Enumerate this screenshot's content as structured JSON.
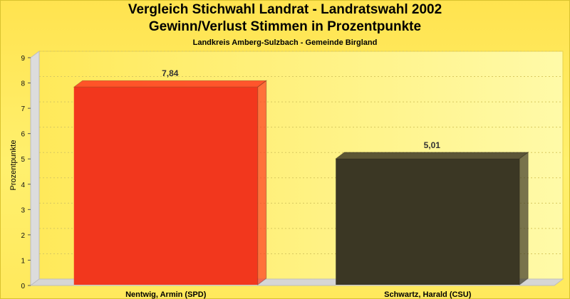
{
  "header": {
    "title_line1": "Vergleich Stichwahl Landrat - Landratswahl 2002",
    "title_line2": "Gewinn/Verlust Stimmen in Prozentpunkte",
    "subtitle": "Landkreis Amberg-Sulzbach - Gemeinde Birgland"
  },
  "chart_data": {
    "type": "bar",
    "title": "Vergleich Stichwahl Landrat - Landratswahl 2002",
    "subtitle": "Gewinn/Verlust Stimmen in Prozentpunkte",
    "caption": "Landkreis Amberg-Sulzbach - Gemeinde Birgland",
    "xlabel": "",
    "ylabel": "Prozentpunkte",
    "ylim": [
      0,
      9
    ],
    "yticks": [
      0,
      1,
      2,
      3,
      4,
      5,
      6,
      7,
      8,
      9
    ],
    "categories": [
      "Nentwig, Armin (SPD)",
      "Schwartz, Harald (CSU)"
    ],
    "values": [
      7.84,
      5.01
    ],
    "value_labels": [
      "7,84",
      "5,01"
    ],
    "colors": [
      "#ff3a1f",
      "#3f3a26"
    ],
    "grid": true,
    "legend": "none"
  }
}
